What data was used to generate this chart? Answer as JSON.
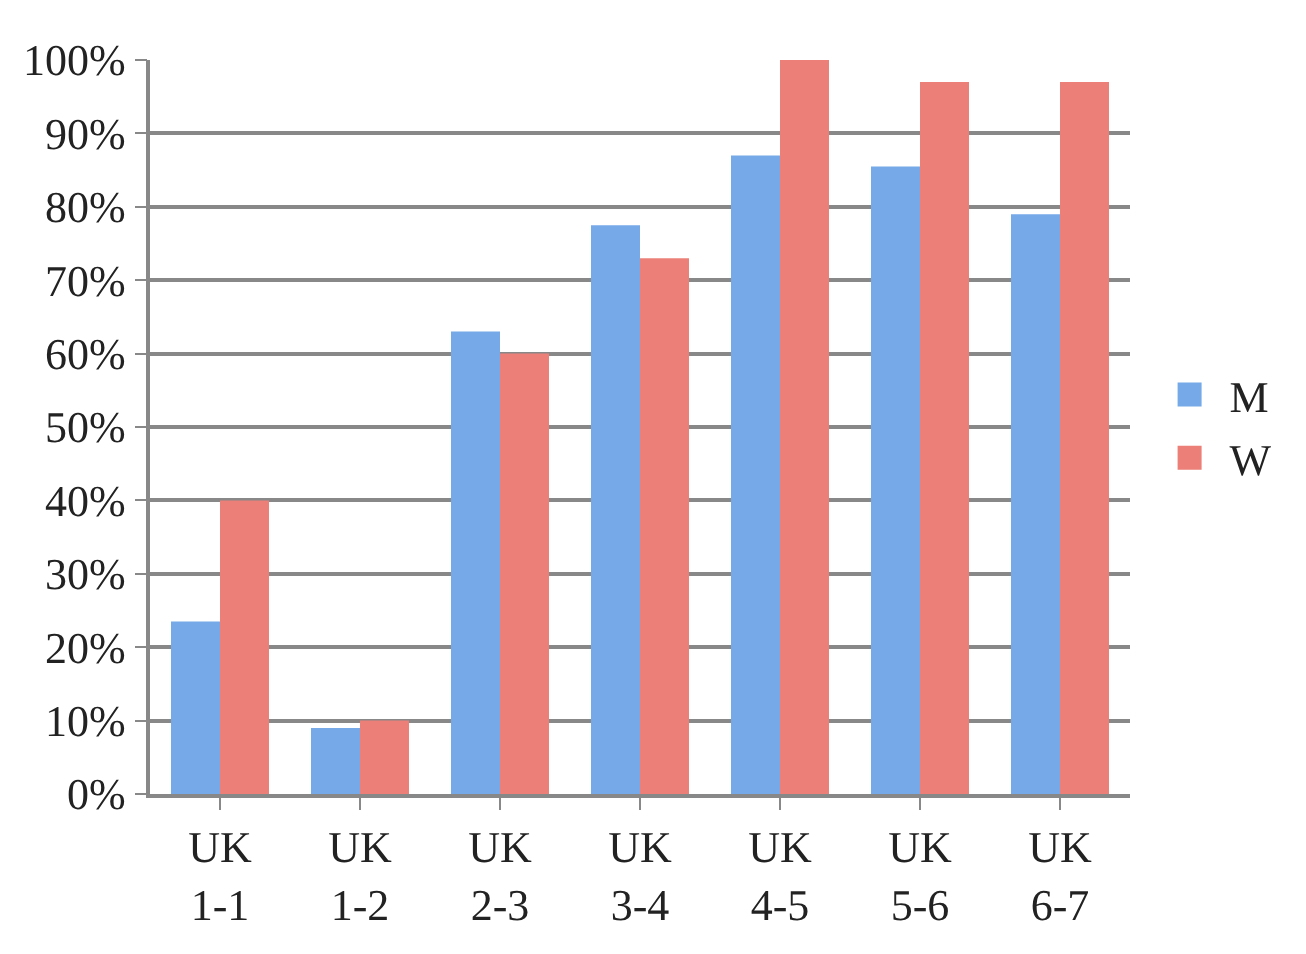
{
  "chart_data": {
    "type": "bar",
    "categories": [
      "UK\n1-1",
      "UK\n1-2",
      "UK\n2-3",
      "UK\n3-4",
      "UK\n4-5",
      "UK\n5-6",
      "UK\n6-7"
    ],
    "series": [
      {
        "name": "M",
        "color": "#75a9e8",
        "values": [
          23.5,
          9,
          63,
          77.5,
          87,
          85.5,
          79
        ]
      },
      {
        "name": "W",
        "color": "#ec7f77",
        "values": [
          40,
          10,
          60,
          73,
          100,
          97,
          97
        ]
      }
    ],
    "ylim": [
      0,
      100
    ],
    "yticks": [
      {
        "value": 0,
        "label": "0%"
      },
      {
        "value": 10,
        "label": "10%"
      },
      {
        "value": 20,
        "label": "20%"
      },
      {
        "value": 30,
        "label": "30%"
      },
      {
        "value": 40,
        "label": "40%"
      },
      {
        "value": 50,
        "label": "50%"
      },
      {
        "value": 60,
        "label": "60%"
      },
      {
        "value": 70,
        "label": "70%"
      },
      {
        "value": 80,
        "label": "80%"
      },
      {
        "value": 90,
        "label": "90%"
      },
      {
        "value": 100,
        "label": "100%"
      }
    ],
    "grid": "y",
    "legend": "right"
  }
}
